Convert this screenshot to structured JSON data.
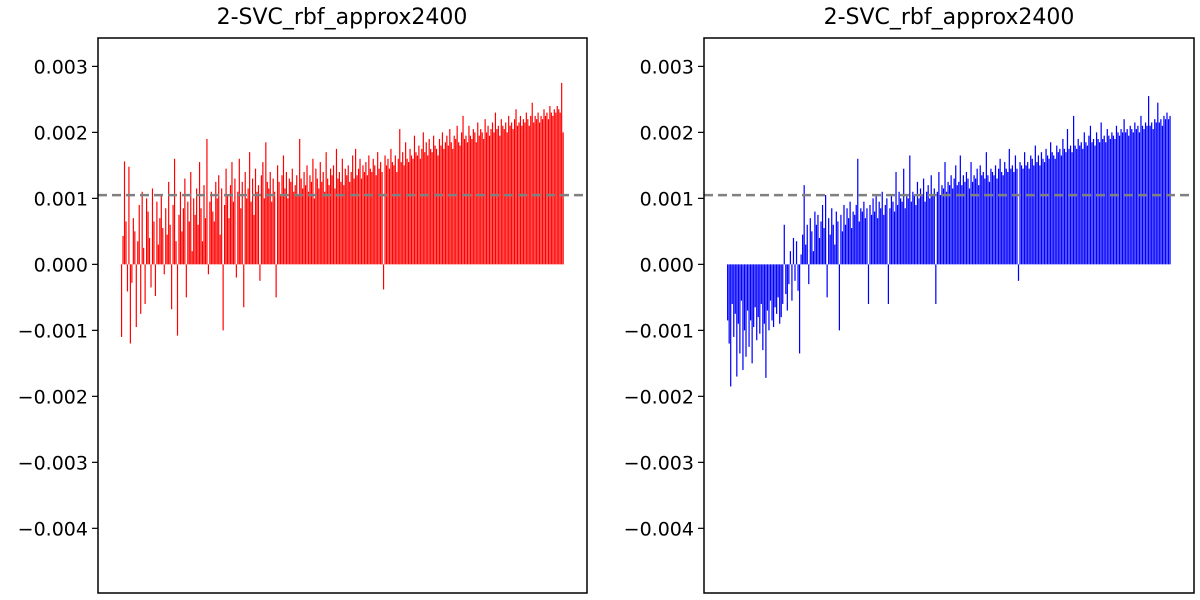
{
  "chart_data": [
    {
      "type": "bar",
      "title": "2-SVC_rbf_approx2400",
      "xlabel": "",
      "ylabel": "",
      "ylim": [
        -0.00498,
        0.00343
      ],
      "yticks": [
        0.003,
        0.002,
        0.001,
        0.0,
        -0.001,
        -0.002,
        -0.003,
        -0.004
      ],
      "ytick_labels": [
        "0.003",
        "0.002",
        "0.001",
        "0.000",
        "−0.001",
        "−0.002",
        "−0.003",
        "−0.004"
      ],
      "xticks_visible": false,
      "grid": false,
      "bar_color": "#ff0000",
      "n_bars": 300,
      "reference_line": {
        "value": 0.00105,
        "color": "#808080",
        "style": "dashed"
      },
      "values": [
        -0.0011,
        0.00043,
        0.00156,
        0.00065,
        -0.00041,
        0.00148,
        -0.0012,
        -0.00028,
        0.0007,
        0.0005,
        -0.00095,
        0.00035,
        0.0009,
        -0.00075,
        0.0011,
        0.00025,
        -0.0006,
        0.001,
        0.0008,
        0.0004,
        -0.00035,
        0.00115,
        0.00065,
        -0.00048,
        0.00095,
        0.0003,
        0.0007,
        0.00105,
        0.00055,
        -0.00015,
        0.00085,
        0.00045,
        0.00125,
        0.0006,
        -0.00068,
        0.0009,
        0.0016,
        0.00035,
        -0.00108,
        0.00075,
        0.0011,
        0.0005,
        0.00085,
        0.0013,
        -0.0005,
        0.00095,
        0.00065,
        0.0014,
        0.0002,
        0.001,
        0.00075,
        0.00115,
        0.0006,
        0.00155,
        0.00085,
        0.00035,
        0.0012,
        0.0007,
        0.0019,
        -0.00015,
        0.00095,
        0.0011,
        0.0008,
        0.00065,
        0.00125,
        0.001,
        0.00135,
        0.00045,
        0.00115,
        -0.001,
        0.0009,
        0.00145,
        0.00105,
        0.0007,
        0.0012,
        0.00155,
        0.00095,
        0.0013,
        -0.0002,
        0.0011,
        0.0016,
        0.00085,
        0.00125,
        -0.00065,
        0.0014,
        0.001,
        0.00115,
        0.0017,
        0.00095,
        0.0013,
        0.00075,
        0.00145,
        0.0011,
        0.0012,
        -0.00025,
        0.00135,
        0.00155,
        0.001,
        0.00185,
        0.00125,
        0.00115,
        0.0014,
        0.00095,
        0.0013,
        0.0011,
        -0.0005,
        0.0015,
        0.00125,
        0.00105,
        0.00135,
        0.00165,
        0.00115,
        0.0014,
        0.001,
        0.0013,
        0.00125,
        0.00145,
        0.0011,
        0.0012,
        0.00135,
        0.00105,
        0.0019,
        0.0013,
        0.00115,
        0.0014,
        0.0012,
        0.0015,
        0.0011,
        0.00135,
        0.00125,
        0.0016,
        0.001,
        0.00145,
        0.0013,
        0.00115,
        0.00155,
        0.00125,
        0.0014,
        0.0011,
        0.0017,
        0.0013,
        0.0012,
        0.00145,
        0.00135,
        0.0015,
        0.00115,
        0.00175,
        0.0013,
        0.0014,
        0.00125,
        0.0016,
        0.0012,
        0.00145,
        0.00135,
        0.0015,
        0.00125,
        0.0014,
        0.00165,
        0.0013,
        0.00175,
        0.00135,
        0.00145,
        0.0016,
        0.0013,
        0.0015,
        0.0014,
        0.00155,
        0.00135,
        0.00165,
        0.00145,
        0.0014,
        0.0016,
        0.0015,
        0.00135,
        0.0017,
        0.00145,
        0.00155,
        0.0014,
        -0.00038,
        0.00165,
        0.0015,
        0.0016,
        0.00145,
        0.00175,
        0.00155,
        0.0015,
        0.00165,
        0.0014,
        0.0016,
        0.00205,
        0.00155,
        0.0017,
        0.0015,
        0.00185,
        0.0016,
        0.00155,
        0.00175,
        0.00165,
        0.0016,
        0.00195,
        0.0017,
        0.00165,
        0.0018,
        0.0016,
        0.00175,
        0.002,
        0.0017,
        0.00185,
        0.00165,
        0.0019,
        0.00175,
        0.0017,
        0.00195,
        0.0018,
        0.00175,
        0.00165,
        0.0019,
        0.0018,
        0.002,
        0.00175,
        0.00185,
        0.00195,
        0.0018,
        0.00205,
        0.00185,
        0.00175,
        0.00195,
        0.0019,
        0.0021,
        0.00185,
        0.0018,
        0.002,
        0.00225,
        0.0019,
        0.00195,
        0.00185,
        0.0021,
        0.00195,
        0.0019,
        0.00205,
        0.002,
        0.00185,
        0.00215,
        0.00195,
        0.00205,
        0.002,
        0.0019,
        0.0022,
        0.002,
        0.0021,
        0.00195,
        0.00205,
        0.00215,
        0.002,
        0.0023,
        0.00205,
        0.0021,
        0.00195,
        0.0022,
        0.0021,
        0.00205,
        0.00215,
        0.002,
        0.00225,
        0.0021,
        0.00215,
        0.00205,
        0.0022,
        0.00235,
        0.0021,
        0.00215,
        0.00225,
        0.0021,
        0.0022,
        0.00215,
        0.0023,
        0.0022,
        0.0021,
        0.00225,
        0.00245,
        0.00215,
        0.00225,
        0.0022,
        0.0023,
        0.00215,
        0.00225,
        0.0022,
        0.00235,
        0.00225,
        0.0023,
        0.0022,
        0.0024,
        0.0023,
        0.00225,
        0.00235,
        0.0023,
        0.0024,
        0.00235,
        0.0023,
        0.00275,
        0.002
      ]
    },
    {
      "type": "bar",
      "title": "2-SVC_rbf_approx2400",
      "xlabel": "",
      "ylabel": "",
      "ylim": [
        -0.00498,
        0.00343
      ],
      "yticks": [
        0.003,
        0.002,
        0.001,
        0.0,
        -0.001,
        -0.002,
        -0.003,
        -0.004
      ],
      "ytick_labels": [
        "0.003",
        "0.002",
        "0.001",
        "0.000",
        "−0.001",
        "−0.002",
        "−0.003",
        "−0.004"
      ],
      "xticks_visible": false,
      "grid": false,
      "bar_color": "#0000ff",
      "n_bars": 300,
      "reference_line": {
        "value": 0.00105,
        "color": "#808080",
        "style": "dashed"
      },
      "values": [
        -0.00085,
        -0.0012,
        -0.00185,
        -0.0006,
        -0.0011,
        -0.00075,
        -0.0017,
        -0.0009,
        -0.00135,
        -0.00055,
        -0.0016,
        -0.001,
        -0.0014,
        -0.0007,
        -0.00125,
        -0.00085,
        -0.0015,
        -0.00095,
        -0.00065,
        -0.00115,
        -0.0008,
        -0.00105,
        -0.0006,
        -0.0013,
        -0.0009,
        -0.00172,
        -0.0007,
        -0.001,
        -0.00055,
        -0.00085,
        -0.00095,
        -0.00065,
        -0.00075,
        -0.0005,
        -0.0009,
        -0.0008,
        -0.0006,
        0.0006,
        -0.00045,
        -0.0007,
        -0.0003,
        0.0002,
        -0.00055,
        0.0004,
        -0.00025,
        0.00035,
        -0.0004,
        -0.00135,
        0.00015,
        0.00045,
        0.0012,
        0.0003,
        0.0006,
        -0.0003,
        0.0007,
        0.0005,
        0.0002,
        0.0008,
        0.0006,
        0.00075,
        0.0004,
        0.00065,
        0.0009,
        0.00055,
        0.00105,
        -0.0005,
        0.0007,
        0.00045,
        0.00085,
        0.0006,
        0.0003,
        0.0008,
        0.00065,
        -0.001,
        0.00075,
        0.0005,
        0.0009,
        0.0006,
        0.00085,
        0.0007,
        0.00095,
        0.00055,
        0.0008,
        0.00075,
        0.0009,
        0.0016,
        0.00065,
        0.00085,
        0.0008,
        0.00095,
        0.0007,
        0.00085,
        -0.0006,
        0.0009,
        0.00075,
        0.001,
        0.0008,
        0.00105,
        0.0007,
        0.00095,
        0.00085,
        0.0011,
        0.00075,
        0.0009,
        0.001,
        -0.0006,
        0.00085,
        0.00105,
        0.00095,
        0.0008,
        0.0014,
        0.0009,
        0.0011,
        0.001,
        0.00095,
        0.00145,
        0.00085,
        0.00105,
        0.001,
        0.00165,
        0.00095,
        0.0011,
        0.00105,
        0.0009,
        0.00125,
        0.001,
        0.00115,
        0.00105,
        0.0013,
        0.00095,
        0.0011,
        0.0012,
        0.001,
        0.00135,
        0.00105,
        0.00115,
        -0.0006,
        0.0011,
        0.0014,
        0.00105,
        0.0012,
        0.00115,
        0.00155,
        0.0011,
        0.00125,
        0.0012,
        0.00135,
        0.00115,
        0.0013,
        0.0015,
        0.0012,
        0.00125,
        0.00165,
        0.0012,
        0.00135,
        0.00125,
        0.0014,
        0.0013,
        0.00115,
        0.00155,
        0.00125,
        0.00135,
        0.0013,
        0.00145,
        0.0012,
        0.0015,
        0.00135,
        0.0014,
        0.0013,
        0.0017,
        0.00135,
        0.00125,
        0.00145,
        0.0014,
        0.00135,
        0.0015,
        0.0013,
        0.00145,
        0.0016,
        0.0014,
        0.00135,
        0.00155,
        0.00145,
        0.0014,
        0.00175,
        0.00145,
        0.0015,
        0.0014,
        0.00165,
        0.00145,
        -0.00025,
        0.00155,
        0.0015,
        0.00145,
        0.0017,
        0.0015,
        0.00155,
        0.00145,
        0.00165,
        0.0016,
        0.0015,
        0.0018,
        0.00155,
        0.00165,
        0.0015,
        0.0017,
        0.0016,
        0.00155,
        0.00175,
        0.00165,
        0.0016,
        0.00185,
        0.0017,
        0.00165,
        0.0016,
        0.0018,
        0.0017,
        0.00175,
        0.00165,
        0.0019,
        0.00175,
        0.0017,
        0.00205,
        0.00175,
        0.0018,
        0.0017,
        0.00225,
        0.0018,
        0.00175,
        0.0019,
        0.0018,
        0.00185,
        0.00175,
        0.002,
        0.00185,
        0.0018,
        0.00195,
        0.0021,
        0.00185,
        0.0019,
        0.0018,
        0.002,
        0.0019,
        0.00185,
        0.00215,
        0.0019,
        0.00195,
        0.00185,
        0.00205,
        0.00195,
        0.0019,
        0.002,
        0.00195,
        0.0019,
        0.0021,
        0.002,
        0.00195,
        0.00205,
        0.002,
        0.0022,
        0.002,
        0.00205,
        0.00195,
        0.0021,
        0.00205,
        0.002,
        0.00215,
        0.00205,
        0.0021,
        0.002,
        0.00225,
        0.0021,
        0.00205,
        0.00215,
        0.0021,
        0.00255,
        0.0021,
        0.00215,
        0.00205,
        0.0022,
        0.00215,
        0.00245,
        0.00215,
        0.0022,
        0.0021,
        0.00225,
        0.0022,
        0.0023,
        0.0022,
        0.00225
      ]
    }
  ]
}
